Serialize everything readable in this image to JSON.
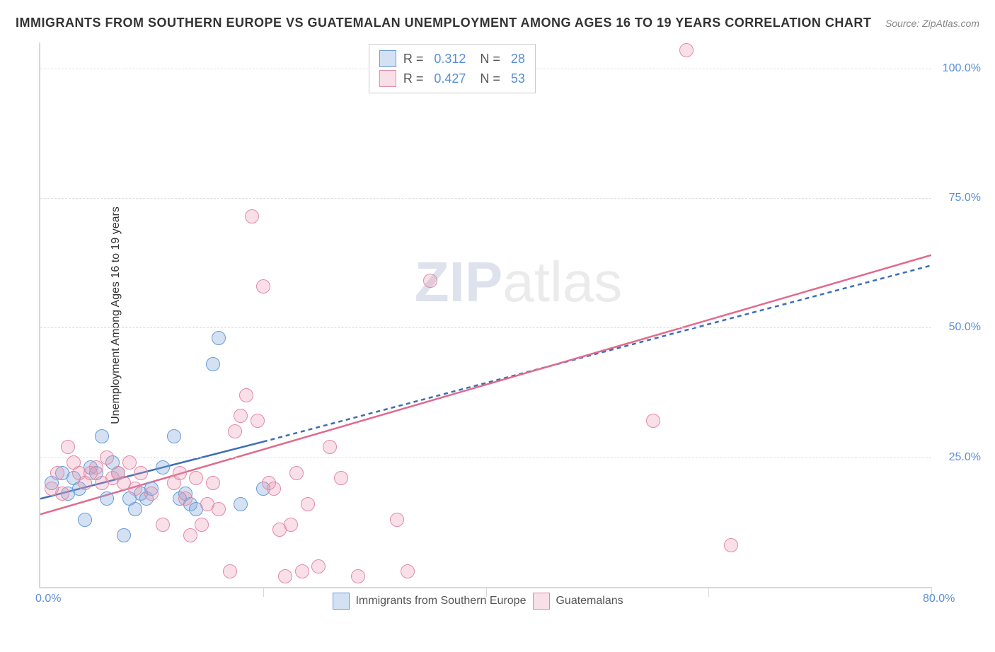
{
  "title": "IMMIGRANTS FROM SOUTHERN EUROPE VS GUATEMALAN UNEMPLOYMENT AMONG AGES 16 TO 19 YEARS CORRELATION CHART",
  "source_label": "Source:",
  "source_value": "ZipAtlas.com",
  "ylabel": "Unemployment Among Ages 16 to 19 years",
  "watermark_a": "ZIP",
  "watermark_b": "atlas",
  "chart": {
    "type": "scatter",
    "xlim": [
      0,
      80
    ],
    "ylim": [
      0,
      105
    ],
    "xtick_min_label": "0.0%",
    "xtick_max_label": "80.0%",
    "xtick_positions": [
      20,
      40,
      60,
      80
    ],
    "ytick_positions": [
      25,
      50,
      75,
      100
    ],
    "ytick_labels": [
      "25.0%",
      "50.0%",
      "75.0%",
      "100.0%"
    ],
    "grid_color": "#dddddd",
    "axis_color": "#d8d8d8",
    "background_color": "#ffffff",
    "tick_label_color": "#5a8fd6",
    "marker_radius": 10,
    "marker_border_width": 1.5,
    "line_width": 2.5,
    "dash_pattern": "6,5",
    "series": [
      {
        "name": "Immigrants from Southern Europe",
        "fill": "rgba(130,170,220,0.35)",
        "stroke": "#6a9bd8",
        "line_color": "#3d6db5",
        "r_value": "0.312",
        "n_value": "28",
        "trend_solid": {
          "x1": 0,
          "y1": 17,
          "x2": 20,
          "y2": 28
        },
        "trend_dash": {
          "x1": 20,
          "y1": 28,
          "x2": 80,
          "y2": 62
        },
        "points": [
          [
            1,
            20
          ],
          [
            2,
            22
          ],
          [
            2.5,
            18
          ],
          [
            3,
            21
          ],
          [
            3.5,
            19
          ],
          [
            4,
            13
          ],
          [
            4.5,
            23
          ],
          [
            5,
            22
          ],
          [
            5.5,
            29
          ],
          [
            6,
            17
          ],
          [
            6.5,
            24
          ],
          [
            7,
            22
          ],
          [
            7.5,
            10
          ],
          [
            8,
            17
          ],
          [
            8.5,
            15
          ],
          [
            9,
            18
          ],
          [
            9.5,
            17
          ],
          [
            10,
            19
          ],
          [
            11,
            23
          ],
          [
            12,
            29
          ],
          [
            12.5,
            17
          ],
          [
            13,
            18
          ],
          [
            13.5,
            16
          ],
          [
            14,
            15
          ],
          [
            15.5,
            43
          ],
          [
            16,
            48
          ],
          [
            18,
            16
          ],
          [
            20,
            19
          ]
        ]
      },
      {
        "name": "Guatemalans",
        "fill": "rgba(235,150,175,0.30)",
        "stroke": "#e08ca6",
        "line_color": "#e06a8d",
        "r_value": "0.427",
        "n_value": "53",
        "trend_solid": {
          "x1": 0,
          "y1": 14,
          "x2": 80,
          "y2": 64
        },
        "trend_dash": null,
        "points": [
          [
            1,
            19
          ],
          [
            1.5,
            22
          ],
          [
            2,
            18
          ],
          [
            2.5,
            27
          ],
          [
            3,
            24
          ],
          [
            3.5,
            22
          ],
          [
            4,
            20
          ],
          [
            4.5,
            22
          ],
          [
            5,
            23
          ],
          [
            5.5,
            20
          ],
          [
            6,
            25
          ],
          [
            6.5,
            21
          ],
          [
            7,
            22
          ],
          [
            7.5,
            20
          ],
          [
            8,
            24
          ],
          [
            8.5,
            19
          ],
          [
            9,
            22
          ],
          [
            10,
            18
          ],
          [
            11,
            12
          ],
          [
            12,
            20
          ],
          [
            12.5,
            22
          ],
          [
            13,
            17
          ],
          [
            13.5,
            10
          ],
          [
            14,
            21
          ],
          [
            14.5,
            12
          ],
          [
            15,
            16
          ],
          [
            15.5,
            20
          ],
          [
            16,
            15
          ],
          [
            17,
            3
          ],
          [
            17.5,
            30
          ],
          [
            18,
            33
          ],
          [
            18.5,
            37
          ],
          [
            19,
            71.5
          ],
          [
            19.5,
            32
          ],
          [
            20,
            58
          ],
          [
            20.5,
            20
          ],
          [
            21,
            19
          ],
          [
            21.5,
            11
          ],
          [
            22,
            2
          ],
          [
            22.5,
            12
          ],
          [
            23,
            22
          ],
          [
            23.5,
            3
          ],
          [
            24,
            16
          ],
          [
            25,
            4
          ],
          [
            26,
            27
          ],
          [
            27,
            21
          ],
          [
            28.5,
            2
          ],
          [
            32,
            13
          ],
          [
            33,
            3
          ],
          [
            35,
            59
          ],
          [
            55,
            32
          ],
          [
            58,
            103.5
          ],
          [
            62,
            8
          ]
        ]
      }
    ]
  },
  "legend_bottom": {
    "a": "Immigrants from Southern Europe",
    "b": "Guatemalans"
  }
}
